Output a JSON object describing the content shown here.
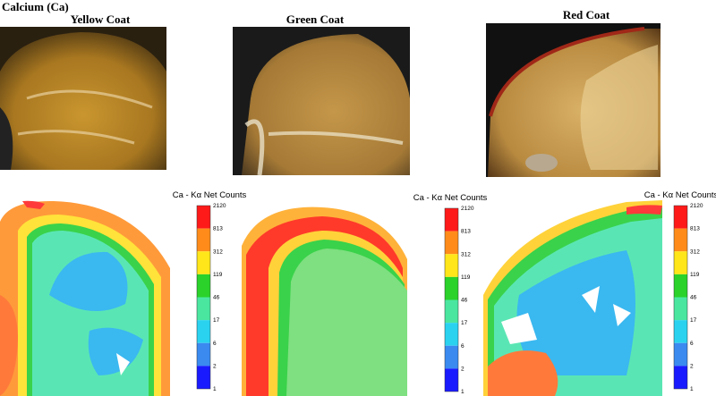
{
  "figure": {
    "title": "Calcium (Ca)",
    "panels": [
      {
        "label": "Yellow Coat"
      },
      {
        "label": "Green Coat"
      },
      {
        "label": "Red Coat"
      }
    ],
    "colorbar": {
      "title": "Ca - Kα Net Counts",
      "ticks": [
        2120,
        813,
        312,
        119,
        46,
        17,
        6,
        2,
        1
      ]
    }
  }
}
